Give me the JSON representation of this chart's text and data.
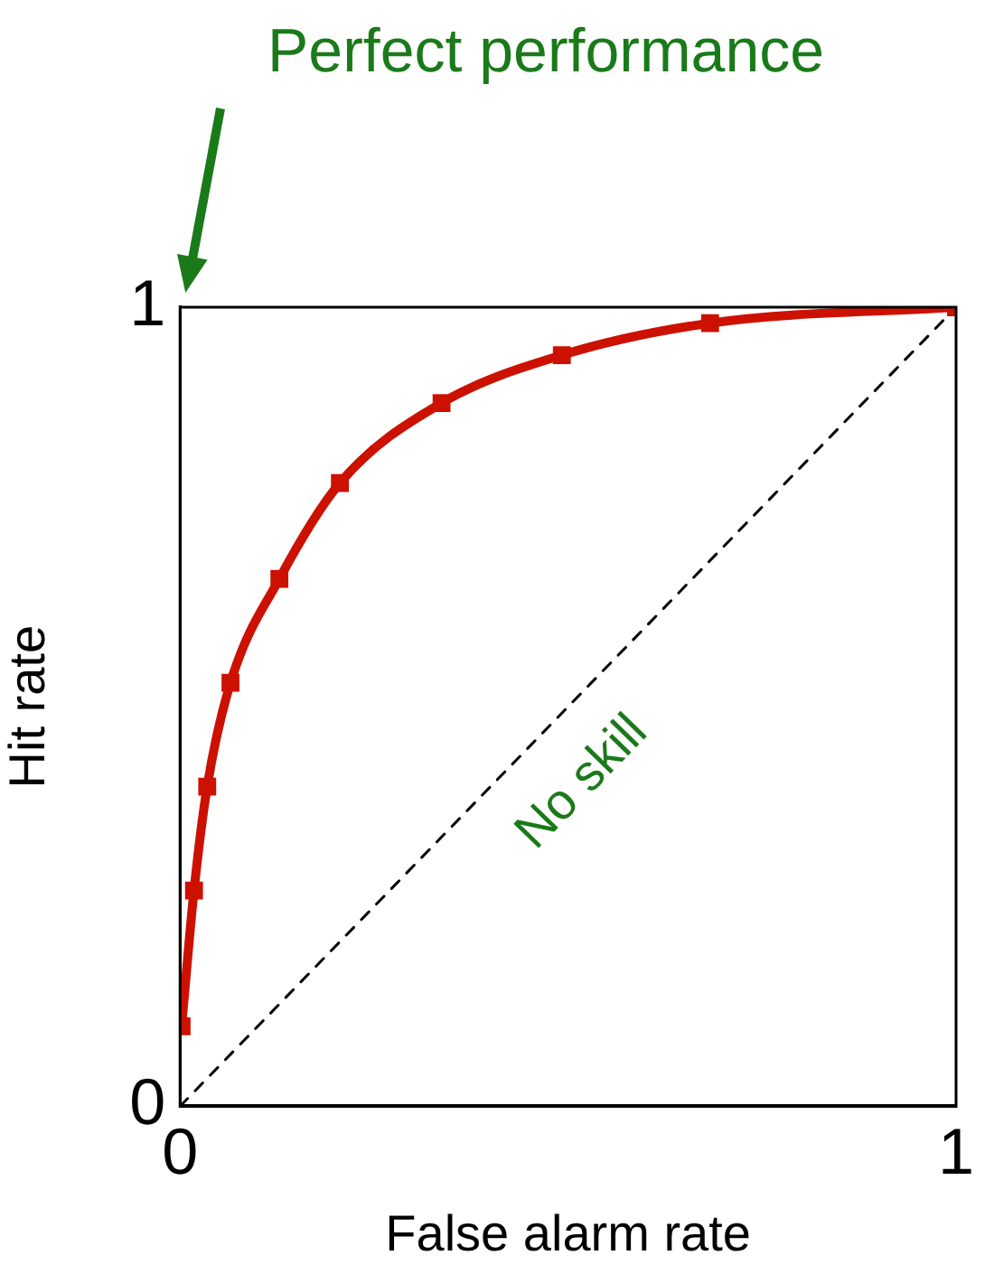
{
  "chart_data": {
    "type": "line",
    "xlabel": "False alarm rate",
    "ylabel": "Hit rate",
    "xlim": [
      0,
      1
    ],
    "ylim": [
      0,
      1
    ],
    "xticks": [
      0,
      1
    ],
    "yticks": [
      0,
      1
    ],
    "grid": false,
    "legend": false,
    "marker": "square",
    "line_style": "solid",
    "series": [
      {
        "color": "#cc1100",
        "x": [
          0.002,
          0.018,
          0.035,
          0.065,
          0.128,
          0.206,
          0.337,
          0.492,
          0.683,
          1.0
        ],
        "values": [
          0.1,
          0.27,
          0.4,
          0.53,
          0.66,
          0.78,
          0.88,
          0.94,
          0.98,
          1.0
        ]
      },
      {
        "name": "No skill",
        "color": "#000000",
        "line_style": "dashed",
        "marker": "none",
        "x": [
          0,
          1
        ],
        "values": [
          0,
          1
        ]
      }
    ],
    "annotations": [
      "Perfect performance"
    ]
  }
}
